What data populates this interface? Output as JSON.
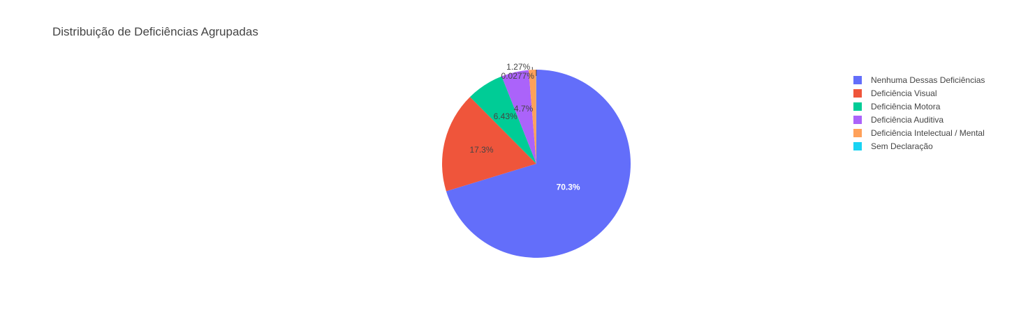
{
  "chart_data": {
    "type": "pie",
    "title": "Distribuição de Deficiências Agrupadas",
    "legend_position": "top-right",
    "slices": [
      {
        "label": "Nenhuma Dessas Deficiências",
        "percent": 70.3,
        "display": "70.3%",
        "color": "#636efa"
      },
      {
        "label": "Deficiência Visual",
        "percent": 17.3,
        "display": "17.3%",
        "color": "#ef553b"
      },
      {
        "label": "Deficiência Motora",
        "percent": 6.43,
        "display": "6.43%",
        "color": "#00cc96"
      },
      {
        "label": "Deficiência Auditiva",
        "percent": 4.7,
        "display": "4.7%",
        "color": "#ab63fa"
      },
      {
        "label": "Deficiência Intelectual / Mental",
        "percent": 1.27,
        "display": "1.27%",
        "color": "#ffa15a"
      },
      {
        "label": "Sem Declaração",
        "percent": 0.0277,
        "display": "0.0277%",
        "color": "#19d3f3"
      }
    ]
  }
}
